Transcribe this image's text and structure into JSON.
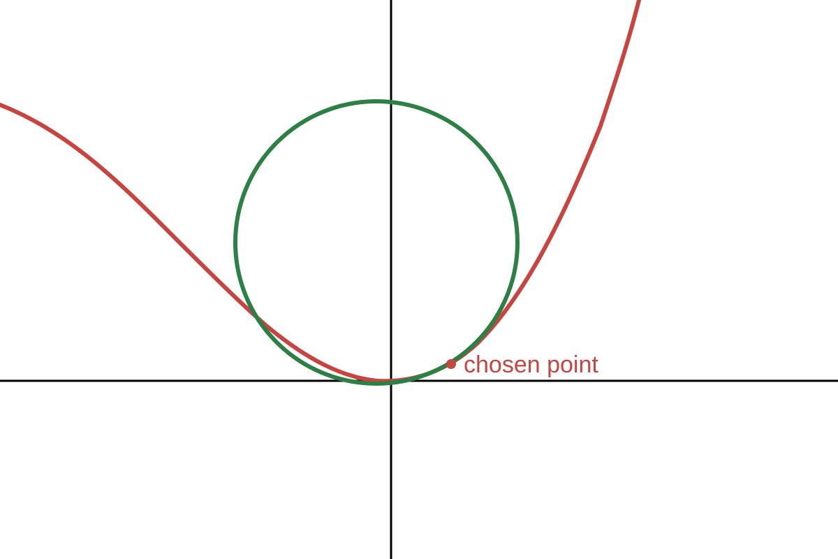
{
  "diagram": {
    "colors": {
      "background": "#ffffff",
      "axis": "#000000",
      "curve": "#c74440",
      "circle": "#2d8045",
      "point": "#c74440",
      "label": "#c74440"
    },
    "point_label": "chosen point"
  }
}
